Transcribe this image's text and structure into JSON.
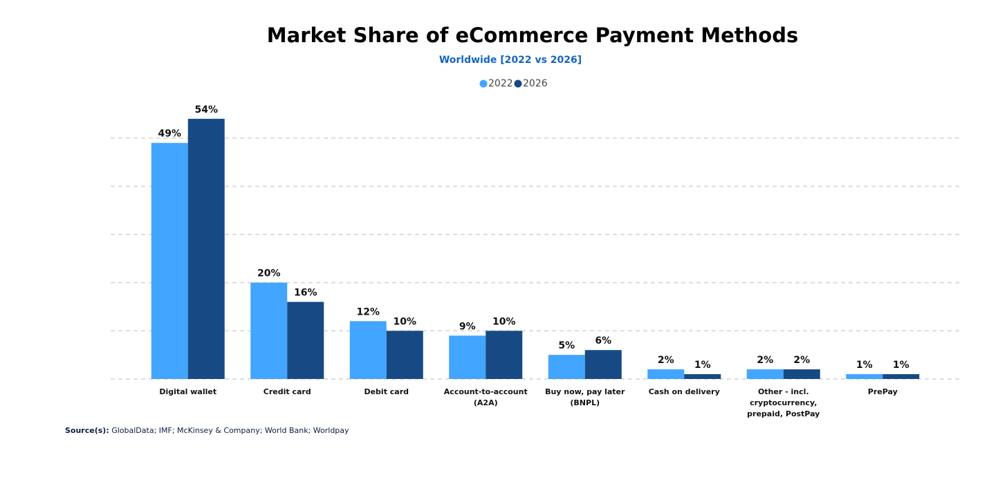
{
  "chart_data": {
    "type": "bar",
    "title": "Market Share of eCommerce Payment Methods",
    "subtitle": "Worldwide [2022 vs 2026]",
    "categories": [
      "Digital wallet",
      "Credit card",
      "Debit card",
      "Account-to-account (A2A)",
      "Buy now, pay later (BNPL)",
      "Cash on delivery",
      "Other - incl. cryptocurrency, prepaid, PostPay",
      "PrePay"
    ],
    "series": [
      {
        "name": "2022",
        "color": "#42a5ff",
        "values": [
          49,
          20,
          12,
          9,
          5,
          2,
          2,
          1
        ],
        "value_labels": [
          "49%",
          "20%",
          "12%",
          "9%",
          "5%",
          "2%",
          "2%",
          "1%"
        ]
      },
      {
        "name": "2026",
        "color": "#174a84",
        "values": [
          54,
          16,
          10,
          10,
          6,
          1,
          2,
          1
        ],
        "value_labels": [
          "54%",
          "16%",
          "10%",
          "10%",
          "6%",
          "1%",
          "2%",
          "1%"
        ]
      }
    ],
    "ylim": [
      0,
      60
    ],
    "yticks": [
      0,
      10,
      20,
      30,
      40,
      50
    ],
    "grid": true,
    "source_label": "Source(s):",
    "source": "GlobalData; IMF; McKinsey & Company; World Bank; Worldpay"
  }
}
